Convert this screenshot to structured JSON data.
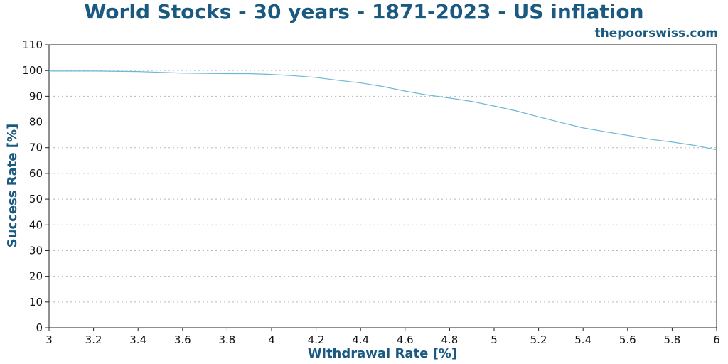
{
  "chart_data": {
    "type": "line",
    "title": "World Stocks - 30 years - 1871-2023 - US inflation",
    "watermark": "thepoorswiss.com",
    "xlabel": "Withdrawal Rate [%]",
    "ylabel": "Success Rate [%]",
    "xlim": [
      3,
      6
    ],
    "ylim": [
      0,
      110
    ],
    "xticks": [
      3,
      3.2,
      3.4,
      3.6,
      3.8,
      4,
      4.2,
      4.4,
      4.6,
      4.8,
      5,
      5.2,
      5.4,
      5.6,
      5.8,
      6
    ],
    "xtick_labels": [
      "3",
      "3.2",
      "3.4",
      "3.6",
      "3.8",
      "4",
      "4.2",
      "4.4",
      "4.6",
      "4.8",
      "5",
      "5.2",
      "5.4",
      "5.6",
      "5.8",
      "6"
    ],
    "yticks": [
      0,
      10,
      20,
      30,
      40,
      50,
      60,
      70,
      80,
      90,
      100,
      110
    ],
    "ytick_labels": [
      "0",
      "10",
      "20",
      "30",
      "40",
      "50",
      "60",
      "70",
      "80",
      "90",
      "100",
      "110"
    ],
    "grid": true,
    "series": [
      {
        "color": "#6bb8d6",
        "x": [
          3.0,
          3.2,
          3.4,
          3.5,
          3.6,
          3.7,
          3.8,
          3.9,
          4.0,
          4.1,
          4.2,
          4.3,
          4.4,
          4.5,
          4.6,
          4.7,
          4.8,
          4.9,
          5.0,
          5.1,
          5.2,
          5.3,
          5.4,
          5.5,
          5.6,
          5.7,
          5.8,
          5.9,
          6.0
        ],
        "y": [
          99.8,
          99.8,
          99.6,
          99.3,
          99.0,
          98.9,
          98.8,
          98.8,
          98.5,
          98.0,
          97.3,
          96.2,
          95.2,
          93.8,
          92.0,
          90.5,
          89.3,
          88.0,
          86.2,
          84.3,
          82.0,
          79.8,
          77.7,
          76.2,
          74.8,
          73.3,
          72.2,
          70.9,
          69.2
        ]
      }
    ]
  }
}
